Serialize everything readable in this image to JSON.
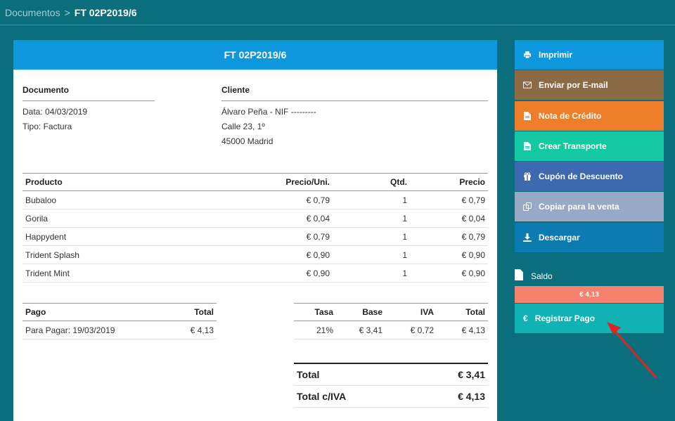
{
  "breadcrumb": {
    "parent": "Documentos",
    "separator": ">",
    "current": "FT 02P2019/6"
  },
  "document": {
    "title": "FT 02P2019/6",
    "doc_section": {
      "title": "Documento",
      "date": "Data: 04/03/2019",
      "type": "Tipo: Factura"
    },
    "client_section": {
      "title": "Cliente",
      "name": "Álvaro Peña - NIF ---------",
      "address1": "Calle 23, 1º",
      "address2": "45000 Madrid"
    },
    "products": {
      "headers": [
        "Producto",
        "Precio/Uni.",
        "Qtd.",
        "Precio"
      ],
      "rows": [
        [
          "Bubaloo",
          "€ 0,79",
          "1",
          "€ 0,79"
        ],
        [
          "Gorila",
          "€ 0,04",
          "1",
          "€ 0,04"
        ],
        [
          "Happydent",
          "€ 0,79",
          "1",
          "€ 0,79"
        ],
        [
          "Trident Splash",
          "€ 0,90",
          "1",
          "€ 0,90"
        ],
        [
          "Trident Mint",
          "€ 0,90",
          "1",
          "€ 0,90"
        ]
      ]
    },
    "payments": {
      "headers": [
        "Pago",
        "Total"
      ],
      "rows": [
        [
          "Para Pagar: 19/03/2019",
          "€ 4,13"
        ]
      ]
    },
    "taxes": {
      "headers": [
        "Tasa",
        "Base",
        "IVA",
        "Total"
      ],
      "rows": [
        [
          "21%",
          "€ 3,41",
          "€ 0,72",
          "€ 4,13"
        ]
      ]
    },
    "totals": [
      [
        "Total",
        "€ 3,41"
      ],
      [
        "Total c/IVA",
        "€ 4,13"
      ]
    ]
  },
  "actions": [
    {
      "label": "Imprimir",
      "icon": "print-icon",
      "color": "#0e97dd",
      "name": "print-button"
    },
    {
      "label": "Enviar por E-mail",
      "icon": "envelope-icon",
      "color": "#8b6a44",
      "name": "email-button"
    },
    {
      "label": "Nota de Crédito",
      "icon": "file-icon",
      "color": "#ef7e2a",
      "name": "credit-note-button"
    },
    {
      "label": "Crear Transporte",
      "icon": "file-icon",
      "color": "#12c9a3",
      "name": "create-transport-button"
    },
    {
      "label": "Cupón de Descuento",
      "icon": "gift-icon",
      "color": "#3d6aae",
      "name": "coupon-button"
    },
    {
      "label": "Copiar para la venta",
      "icon": "copy-icon",
      "color": "#98a9c5",
      "name": "copy-button"
    },
    {
      "label": "Descargar",
      "icon": "download-icon",
      "color": "#0b7bb0",
      "name": "download-button"
    }
  ],
  "balance": {
    "label": "Saldo",
    "value": "€ 4,13",
    "value_color": "#f5826f"
  },
  "register_payment": {
    "label": "Registrar Pago",
    "icon_char": "€",
    "color": "#10b2b4"
  },
  "annotation": {
    "arrow_color": "#e02424"
  }
}
